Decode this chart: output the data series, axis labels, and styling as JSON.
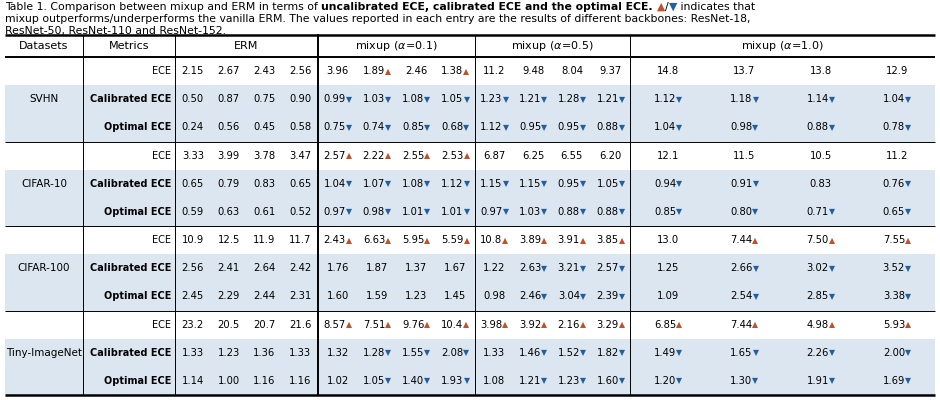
{
  "up": "▲",
  "down": "▼",
  "up_color": "#c0502a",
  "down_color": "#2060a0",
  "shade_color": "#dce6f1",
  "datasets": [
    "SVHN",
    "CIFAR-10",
    "CIFAR-100",
    "Tiny-ImageNet"
  ],
  "metrics": [
    "ECE",
    "Calibrated ECE",
    "Optimal ECE"
  ],
  "table_data": {
    "SVHN": {
      "ECE": {
        "ERM": [
          [
            "2.15",
            "n"
          ],
          [
            "2.67",
            "n"
          ],
          [
            "2.43",
            "n"
          ],
          [
            "2.56",
            "n"
          ]
        ],
        "mixup01": [
          [
            "3.96",
            "n"
          ],
          [
            "1.89",
            "u"
          ],
          [
            "2.46",
            "n"
          ],
          [
            "1.38",
            "u"
          ]
        ],
        "mixup05": [
          [
            "11.2",
            "n"
          ],
          [
            "9.48",
            "n"
          ],
          [
            "8.04",
            "n"
          ],
          [
            "9.37",
            "n"
          ]
        ],
        "mixup10": [
          [
            "14.8",
            "n"
          ],
          [
            "13.7",
            "n"
          ],
          [
            "13.8",
            "n"
          ],
          [
            "12.9",
            "n"
          ]
        ]
      },
      "Calibrated ECE": {
        "ERM": [
          [
            "0.50",
            "n"
          ],
          [
            "0.87",
            "n"
          ],
          [
            "0.75",
            "n"
          ],
          [
            "0.90",
            "n"
          ]
        ],
        "mixup01": [
          [
            "0.99",
            "d"
          ],
          [
            "1.03",
            "d"
          ],
          [
            "1.08",
            "d"
          ],
          [
            "1.05",
            "d"
          ]
        ],
        "mixup05": [
          [
            "1.23",
            "d"
          ],
          [
            "1.21",
            "d"
          ],
          [
            "1.28",
            "d"
          ],
          [
            "1.21",
            "d"
          ]
        ],
        "mixup10": [
          [
            "1.12",
            "d"
          ],
          [
            "1.18",
            "d"
          ],
          [
            "1.14",
            "d"
          ],
          [
            "1.04",
            "d"
          ]
        ]
      },
      "Optimal ECE": {
        "ERM": [
          [
            "0.24",
            "n"
          ],
          [
            "0.56",
            "n"
          ],
          [
            "0.45",
            "n"
          ],
          [
            "0.58",
            "n"
          ]
        ],
        "mixup01": [
          [
            "0.75",
            "d"
          ],
          [
            "0.74",
            "d"
          ],
          [
            "0.85",
            "d"
          ],
          [
            "0.68",
            "d"
          ]
        ],
        "mixup05": [
          [
            "1.12",
            "d"
          ],
          [
            "0.95",
            "d"
          ],
          [
            "0.95",
            "d"
          ],
          [
            "0.88",
            "d"
          ]
        ],
        "mixup10": [
          [
            "1.04",
            "d"
          ],
          [
            "0.98",
            "d"
          ],
          [
            "0.88",
            "d"
          ],
          [
            "0.78",
            "d"
          ]
        ]
      }
    },
    "CIFAR-10": {
      "ECE": {
        "ERM": [
          [
            "3.33",
            "n"
          ],
          [
            "3.99",
            "n"
          ],
          [
            "3.78",
            "n"
          ],
          [
            "3.47",
            "n"
          ]
        ],
        "mixup01": [
          [
            "2.57",
            "u"
          ],
          [
            "2.22",
            "u"
          ],
          [
            "2.55",
            "u"
          ],
          [
            "2.53",
            "u"
          ]
        ],
        "mixup05": [
          [
            "6.87",
            "n"
          ],
          [
            "6.25",
            "n"
          ],
          [
            "6.55",
            "n"
          ],
          [
            "6.20",
            "n"
          ]
        ],
        "mixup10": [
          [
            "12.1",
            "n"
          ],
          [
            "11.5",
            "n"
          ],
          [
            "10.5",
            "n"
          ],
          [
            "11.2",
            "n"
          ]
        ]
      },
      "Calibrated ECE": {
        "ERM": [
          [
            "0.65",
            "n"
          ],
          [
            "0.79",
            "n"
          ],
          [
            "0.83",
            "n"
          ],
          [
            "0.65",
            "n"
          ]
        ],
        "mixup01": [
          [
            "1.04",
            "d"
          ],
          [
            "1.07",
            "d"
          ],
          [
            "1.08",
            "d"
          ],
          [
            "1.12",
            "d"
          ]
        ],
        "mixup05": [
          [
            "1.15",
            "d"
          ],
          [
            "1.15",
            "d"
          ],
          [
            "0.95",
            "d"
          ],
          [
            "1.05",
            "d"
          ]
        ],
        "mixup10": [
          [
            "0.94",
            "d"
          ],
          [
            "0.91",
            "d"
          ],
          [
            "0.83",
            "n"
          ],
          [
            "0.76",
            "d"
          ]
        ]
      },
      "Optimal ECE": {
        "ERM": [
          [
            "0.59",
            "n"
          ],
          [
            "0.63",
            "n"
          ],
          [
            "0.61",
            "n"
          ],
          [
            "0.52",
            "n"
          ]
        ],
        "mixup01": [
          [
            "0.97",
            "d"
          ],
          [
            "0.98",
            "d"
          ],
          [
            "1.01",
            "d"
          ],
          [
            "1.01",
            "d"
          ]
        ],
        "mixup05": [
          [
            "0.97",
            "d"
          ],
          [
            "1.03",
            "d"
          ],
          [
            "0.88",
            "d"
          ],
          [
            "0.88",
            "d"
          ]
        ],
        "mixup10": [
          [
            "0.85",
            "d"
          ],
          [
            "0.80",
            "d"
          ],
          [
            "0.71",
            "d"
          ],
          [
            "0.65",
            "d"
          ]
        ]
      }
    },
    "CIFAR-100": {
      "ECE": {
        "ERM": [
          [
            "10.9",
            "n"
          ],
          [
            "12.5",
            "n"
          ],
          [
            "11.9",
            "n"
          ],
          [
            "11.7",
            "n"
          ]
        ],
        "mixup01": [
          [
            "2.43",
            "u"
          ],
          [
            "6.63",
            "u"
          ],
          [
            "5.95",
            "u"
          ],
          [
            "5.59",
            "u"
          ]
        ],
        "mixup05": [
          [
            "10.8",
            "u"
          ],
          [
            "3.89",
            "u"
          ],
          [
            "3.91",
            "u"
          ],
          [
            "3.85",
            "u"
          ]
        ],
        "mixup10": [
          [
            "13.0",
            "n"
          ],
          [
            "7.44",
            "u"
          ],
          [
            "7.50",
            "u"
          ],
          [
            "7.55",
            "u"
          ]
        ]
      },
      "Calibrated ECE": {
        "ERM": [
          [
            "2.56",
            "n"
          ],
          [
            "2.41",
            "n"
          ],
          [
            "2.64",
            "n"
          ],
          [
            "2.42",
            "n"
          ]
        ],
        "mixup01": [
          [
            "1.76",
            "n"
          ],
          [
            "1.87",
            "n"
          ],
          [
            "1.37",
            "n"
          ],
          [
            "1.67",
            "n"
          ]
        ],
        "mixup05": [
          [
            "1.22",
            "n"
          ],
          [
            "2.63",
            "d"
          ],
          [
            "3.21",
            "d"
          ],
          [
            "2.57",
            "d"
          ]
        ],
        "mixup10": [
          [
            "1.25",
            "n"
          ],
          [
            "2.66",
            "d"
          ],
          [
            "3.02",
            "d"
          ],
          [
            "3.52",
            "d"
          ]
        ]
      },
      "Optimal ECE": {
        "ERM": [
          [
            "2.45",
            "n"
          ],
          [
            "2.29",
            "n"
          ],
          [
            "2.44",
            "n"
          ],
          [
            "2.31",
            "n"
          ]
        ],
        "mixup01": [
          [
            "1.60",
            "n"
          ],
          [
            "1.59",
            "n"
          ],
          [
            "1.23",
            "n"
          ],
          [
            "1.45",
            "n"
          ]
        ],
        "mixup05": [
          [
            "0.98",
            "n"
          ],
          [
            "2.46",
            "d"
          ],
          [
            "3.04",
            "d"
          ],
          [
            "2.39",
            "d"
          ]
        ],
        "mixup10": [
          [
            "1.09",
            "n"
          ],
          [
            "2.54",
            "d"
          ],
          [
            "2.85",
            "d"
          ],
          [
            "3.38",
            "d"
          ]
        ]
      }
    },
    "Tiny-ImageNet": {
      "ECE": {
        "ERM": [
          [
            "23.2",
            "n"
          ],
          [
            "20.5",
            "n"
          ],
          [
            "20.7",
            "n"
          ],
          [
            "21.6",
            "n"
          ]
        ],
        "mixup01": [
          [
            "8.57",
            "u"
          ],
          [
            "7.51",
            "u"
          ],
          [
            "9.76",
            "u"
          ],
          [
            "10.4",
            "u"
          ]
        ],
        "mixup05": [
          [
            "3.98",
            "u"
          ],
          [
            "3.92",
            "u"
          ],
          [
            "2.16",
            "u"
          ],
          [
            "3.29",
            "u"
          ]
        ],
        "mixup10": [
          [
            "6.85",
            "u"
          ],
          [
            "7.44",
            "u"
          ],
          [
            "4.98",
            "u"
          ],
          [
            "5.93",
            "u"
          ]
        ]
      },
      "Calibrated ECE": {
        "ERM": [
          [
            "1.33",
            "n"
          ],
          [
            "1.23",
            "n"
          ],
          [
            "1.36",
            "n"
          ],
          [
            "1.33",
            "n"
          ]
        ],
        "mixup01": [
          [
            "1.32",
            "n"
          ],
          [
            "1.28",
            "d"
          ],
          [
            "1.55",
            "d"
          ],
          [
            "2.08",
            "d"
          ]
        ],
        "mixup05": [
          [
            "1.33",
            "n"
          ],
          [
            "1.46",
            "d"
          ],
          [
            "1.52",
            "d"
          ],
          [
            "1.82",
            "d"
          ]
        ],
        "mixup10": [
          [
            "1.49",
            "d"
          ],
          [
            "1.65",
            "d"
          ],
          [
            "2.26",
            "d"
          ],
          [
            "2.00",
            "d"
          ]
        ]
      },
      "Optimal ECE": {
        "ERM": [
          [
            "1.14",
            "n"
          ],
          [
            "1.00",
            "n"
          ],
          [
            "1.16",
            "n"
          ],
          [
            "1.16",
            "n"
          ]
        ],
        "mixup01": [
          [
            "1.02",
            "n"
          ],
          [
            "1.05",
            "d"
          ],
          [
            "1.40",
            "d"
          ],
          [
            "1.93",
            "d"
          ]
        ],
        "mixup05": [
          [
            "1.08",
            "n"
          ],
          [
            "1.21",
            "d"
          ],
          [
            "1.23",
            "d"
          ],
          [
            "1.60",
            "d"
          ]
        ],
        "mixup10": [
          [
            "1.20",
            "d"
          ],
          [
            "1.30",
            "d"
          ],
          [
            "1.91",
            "d"
          ],
          [
            "1.69",
            "d"
          ]
        ]
      }
    }
  }
}
